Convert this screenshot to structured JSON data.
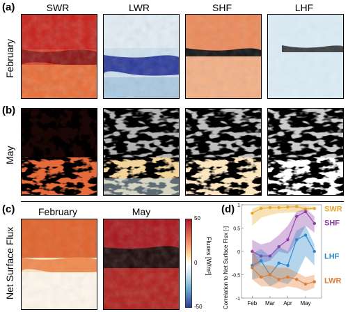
{
  "labels": {
    "a": "(a)",
    "b": "(b)",
    "c": "(c)",
    "d": "(d)"
  },
  "columns": [
    "SWR",
    "LWR",
    "SHF",
    "LHF"
  ],
  "rows": {
    "a": "February",
    "b": "May",
    "c": "Net Surface Flux"
  },
  "panel_c_titles": [
    "February",
    "May"
  ],
  "colorbar": {
    "label": "Fluxes [W/m²]",
    "ticks": [
      "50",
      "0",
      "-50"
    ],
    "colors": [
      "#b2182b",
      "#ef8a62",
      "#fde0a0",
      "#ffffff",
      "#d1e5f0",
      "#67a9cf",
      "#2c3e9c"
    ]
  },
  "series_colors": {
    "SWR": "#e8a92a",
    "SHF": "#8e3ba8",
    "LHF": "#2b87c8",
    "LWR": "#e07a32"
  },
  "chart_data": {
    "type": "line",
    "ylabel": "Correlation to Net Surface Flux [-]",
    "ylim": [
      -1,
      1
    ],
    "yticks": [
      "1",
      "0.5",
      "0",
      "-0.5",
      "-1"
    ],
    "xticks": [
      "Feb",
      "Mar",
      "Apr",
      "May"
    ],
    "x": [
      1,
      1.5,
      2,
      2.5,
      3,
      3.5,
      4,
      4.5
    ],
    "series": [
      {
        "name": "SWR",
        "values": [
          0.82,
          0.92,
          0.94,
          0.94,
          0.95,
          0.96,
          0.91,
          0.92
        ],
        "lower": [
          0.55,
          0.72,
          0.78,
          0.82,
          0.83,
          0.84,
          0.86,
          0.9
        ],
        "upper": [
          0.92,
          0.98,
          0.99,
          0.99,
          0.99,
          0.99,
          0.98,
          0.95
        ]
      },
      {
        "name": "SHF",
        "values": [
          0.0,
          -0.1,
          -0.1,
          0.1,
          0.25,
          0.75,
          0.85,
          0.6
        ],
        "lower": [
          -0.35,
          -0.25,
          -0.2,
          0.0,
          -0.05,
          0.2,
          0.55,
          0.4
        ],
        "upper": [
          0.25,
          0.15,
          0.2,
          0.35,
          0.55,
          0.85,
          0.92,
          0.75
        ]
      },
      {
        "name": "LHF",
        "values": [
          -0.3,
          -0.2,
          -0.5,
          -0.25,
          -0.3,
          0.25,
          0.35,
          0.0
        ],
        "lower": [
          -0.6,
          -0.55,
          -0.75,
          -0.65,
          -0.7,
          -0.5,
          -0.1,
          -0.3
        ],
        "upper": [
          -0.05,
          0.05,
          -0.1,
          0.1,
          0.0,
          0.45,
          0.55,
          0.15
        ]
      },
      {
        "name": "LWR",
        "values": [
          -0.35,
          -0.55,
          -0.5,
          -0.6,
          -0.55,
          -0.6,
          -0.7,
          -0.65
        ],
        "lower": [
          -0.6,
          -0.75,
          -0.75,
          -0.8,
          -0.75,
          -0.78,
          -0.85,
          -0.78
        ],
        "upper": [
          0.05,
          -0.3,
          -0.3,
          -0.35,
          -0.35,
          -0.45,
          -0.55,
          -0.5
        ]
      }
    ]
  }
}
